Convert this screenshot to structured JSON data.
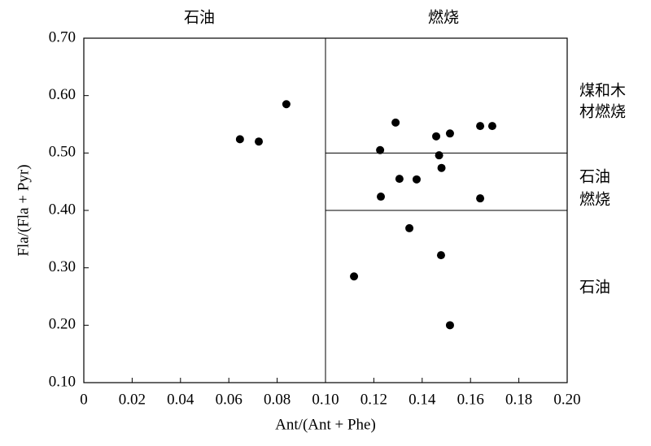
{
  "chart_data": {
    "type": "scatter",
    "x_label": "Ant/(Ant + Phe)",
    "y_label": "Fla/(Fla + Pyr)",
    "xlim": [
      0,
      0.2
    ],
    "ylim": [
      0.1,
      0.7
    ],
    "xticks": [
      0,
      0.02,
      0.04,
      0.06,
      0.08,
      {
        "value": 0.1,
        "label": "0.10"
      },
      0.12,
      0.14,
      0.16,
      0.18,
      {
        "value": 0.2,
        "label": "0.20"
      }
    ],
    "yticks": [
      {
        "value": 0.1,
        "label": "0.10"
      },
      {
        "value": 0.2,
        "label": "0.20"
      },
      {
        "value": 0.3,
        "label": "0.30"
      },
      {
        "value": 0.4,
        "label": "0.40"
      },
      {
        "value": 0.5,
        "label": "0.50"
      },
      {
        "value": 0.6,
        "label": "0.60"
      },
      {
        "value": 0.7,
        "label": "0.70"
      }
    ],
    "vlines": [
      0.1
    ],
    "hlines": [
      0.5,
      0.4
    ],
    "color": "#000000",
    "x": [
      0.0646,
      0.0724,
      0.0838,
      0.129,
      0.1226,
      0.1458,
      0.1515,
      0.164,
      0.169,
      0.147,
      0.148,
      0.1306,
      0.1377,
      0.1229,
      0.164,
      0.1347,
      0.1478,
      0.1118,
      0.1515
    ],
    "values": [
      0.524,
      0.52,
      0.585,
      0.553,
      0.505,
      0.529,
      0.534,
      0.547,
      0.547,
      0.496,
      0.474,
      0.455,
      0.454,
      0.424,
      0.421,
      0.369,
      0.322,
      0.285,
      0.2
    ],
    "top_annotations": [
      "石油",
      "燃烧"
    ],
    "right_annotations": [
      [
        "煤和木",
        "材燃烧"
      ],
      [
        "石油",
        "燃烧"
      ],
      [
        "石油"
      ]
    ]
  }
}
